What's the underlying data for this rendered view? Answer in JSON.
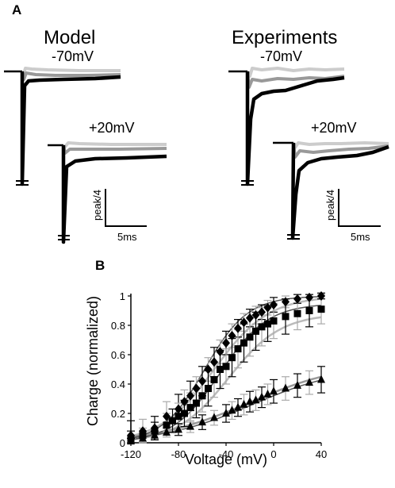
{
  "panel_a": {
    "label": "A",
    "model": {
      "title": "Model",
      "top_label": "-70mV",
      "bottom_label": "+20mV",
      "scale_y": "peak/4",
      "scale_x": "5ms"
    },
    "experiments": {
      "title": "Experiments",
      "top_label": "-70mV",
      "bottom_label": "+20mV",
      "scale_y": "peak/4",
      "scale_x": "5ms"
    },
    "trace_colors": [
      "#cccccc",
      "#999999",
      "#000000"
    ]
  },
  "panel_b": {
    "label": "B"
  },
  "chart_data": {
    "type": "scatter",
    "title": "",
    "xlabel": "Voltage (mV)",
    "ylabel": "Charge (normalized)",
    "xlim": [
      -120,
      40
    ],
    "ylim": [
      0,
      1
    ],
    "xticks": [
      "-120",
      "-80",
      "-40",
      "0",
      "40"
    ],
    "xtick_values": [
      -120,
      -80,
      -40,
      0,
      40
    ],
    "yticks": [
      "0",
      "0.2",
      "0.4",
      "0.6",
      "0.8",
      "1"
    ],
    "ytick_values": [
      0,
      0.2,
      0.4,
      0.6,
      0.8,
      1
    ],
    "grid": false,
    "legend": "none",
    "series": [
      {
        "marker": "diamond",
        "color": "#000000",
        "x": [
          -120,
          -110,
          -100,
          -90,
          -80,
          -75,
          -70,
          -65,
          -60,
          -55,
          -50,
          -45,
          -40,
          -35,
          -30,
          -25,
          -20,
          -15,
          -10,
          -5,
          0,
          10,
          20,
          30,
          40
        ],
        "y": [
          0.05,
          0.08,
          0.1,
          0.18,
          0.23,
          0.28,
          0.32,
          0.37,
          0.42,
          0.5,
          0.55,
          0.62,
          0.68,
          0.73,
          0.78,
          0.82,
          0.85,
          0.87,
          0.89,
          0.92,
          0.94,
          0.96,
          0.98,
          0.99,
          1.0
        ],
        "error": [
          0.1,
          0.08,
          0.08,
          0.1,
          0.1,
          0.08,
          0.1,
          0.08,
          0.1,
          0.08,
          0.1,
          0.08,
          0.08,
          0.08,
          0.06,
          0.06,
          0.06,
          0.06,
          0.05,
          0.05,
          0.05,
          0.04,
          0.03,
          0.02,
          0.02
        ]
      },
      {
        "marker": "square",
        "color": "#000000",
        "x": [
          -120,
          -110,
          -100,
          -90,
          -85,
          -80,
          -75,
          -70,
          -65,
          -60,
          -55,
          -50,
          -45,
          -40,
          -35,
          -30,
          -25,
          -20,
          -15,
          -10,
          -5,
          0,
          10,
          20,
          30,
          40
        ],
        "y": [
          0.03,
          0.05,
          0.08,
          0.12,
          0.15,
          0.18,
          0.2,
          0.24,
          0.27,
          0.32,
          0.37,
          0.43,
          0.5,
          0.52,
          0.58,
          0.64,
          0.68,
          0.72,
          0.76,
          0.79,
          0.81,
          0.83,
          0.86,
          0.88,
          0.9,
          0.91
        ],
        "error": [
          0.05,
          0.05,
          0.06,
          0.08,
          0.08,
          0.09,
          0.09,
          0.1,
          0.1,
          0.11,
          0.12,
          0.12,
          0.13,
          0.12,
          0.13,
          0.13,
          0.13,
          0.13,
          0.13,
          0.13,
          0.12,
          0.12,
          0.12,
          0.11,
          0.11,
          0.1
        ]
      },
      {
        "marker": "triangle",
        "color": "#000000",
        "x": [
          -120,
          -110,
          -100,
          -90,
          -80,
          -70,
          -60,
          -50,
          -40,
          -35,
          -30,
          -25,
          -20,
          -15,
          -10,
          -5,
          0,
          10,
          20,
          30,
          40
        ],
        "y": [
          0.01,
          0.03,
          0.05,
          0.07,
          0.09,
          0.11,
          0.14,
          0.17,
          0.2,
          0.22,
          0.24,
          0.26,
          0.28,
          0.29,
          0.31,
          0.33,
          0.35,
          0.37,
          0.39,
          0.41,
          0.43
        ],
        "error": [
          0.02,
          0.02,
          0.03,
          0.03,
          0.04,
          0.04,
          0.05,
          0.05,
          0.06,
          0.06,
          0.06,
          0.07,
          0.07,
          0.07,
          0.07,
          0.07,
          0.08,
          0.08,
          0.08,
          0.08,
          0.09
        ]
      }
    ],
    "fit_curves": [
      {
        "color": "#bbbbbb",
        "kind": "model",
        "v_half": -50,
        "slope": 23,
        "max": 1.0,
        "offset": 0
      },
      {
        "color": "#bbbbbb",
        "kind": "model",
        "v_half": -38,
        "slope": 22,
        "max": 0.88,
        "offset": 0
      },
      {
        "color": "#999999",
        "kind": "model",
        "v_half": -20,
        "slope": 40,
        "max": 0.55,
        "offset": 0
      },
      {
        "color": "#555555",
        "kind": "fit",
        "v_half": -58,
        "slope": 18,
        "max": 1.0,
        "offset": 0
      },
      {
        "color": "#555555",
        "kind": "fit",
        "v_half": -45,
        "slope": 20,
        "max": 0.95,
        "offset": 0
      },
      {
        "color": "#555555",
        "kind": "fit",
        "v_half": -18,
        "slope": 38,
        "max": 0.52,
        "offset": 0
      }
    ]
  }
}
